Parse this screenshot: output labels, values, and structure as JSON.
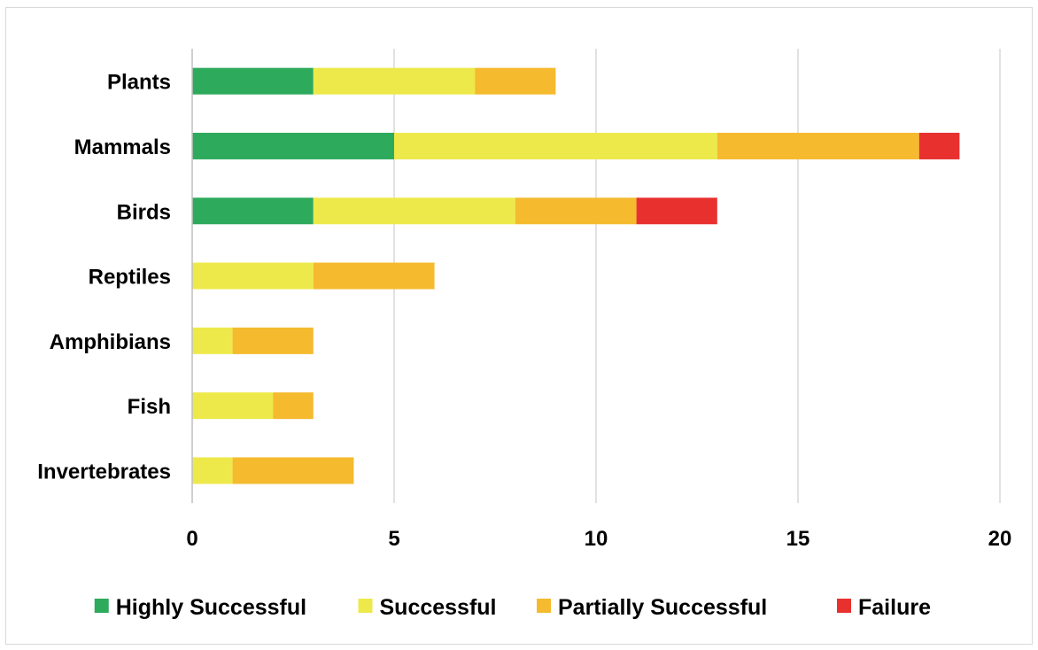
{
  "chart_data": {
    "type": "bar",
    "orientation": "horizontal",
    "stacked": true,
    "categories": [
      "Plants",
      "Mammals",
      "Birds",
      "Reptiles",
      "Amphibians",
      "Fish",
      "Invertebrates"
    ],
    "series": [
      {
        "name": "Highly Successful",
        "color": "#2eaa5c",
        "values": [
          3,
          5,
          3,
          0,
          0,
          0,
          0
        ]
      },
      {
        "name": "Successful",
        "color": "#ede94a",
        "values": [
          4,
          8,
          5,
          3,
          1,
          2,
          1
        ]
      },
      {
        "name": "Partially Successful",
        "color": "#f5ba2e",
        "values": [
          2,
          5,
          3,
          3,
          2,
          1,
          3
        ]
      },
      {
        "name": "Failure",
        "color": "#e8312f",
        "values": [
          0,
          1,
          2,
          0,
          0,
          0,
          0
        ]
      }
    ],
    "x_ticks": [
      "0",
      "5",
      "10",
      "15",
      "20"
    ],
    "xlim": [
      0,
      20
    ],
    "grid": "vertical",
    "legend_position": "bottom"
  }
}
